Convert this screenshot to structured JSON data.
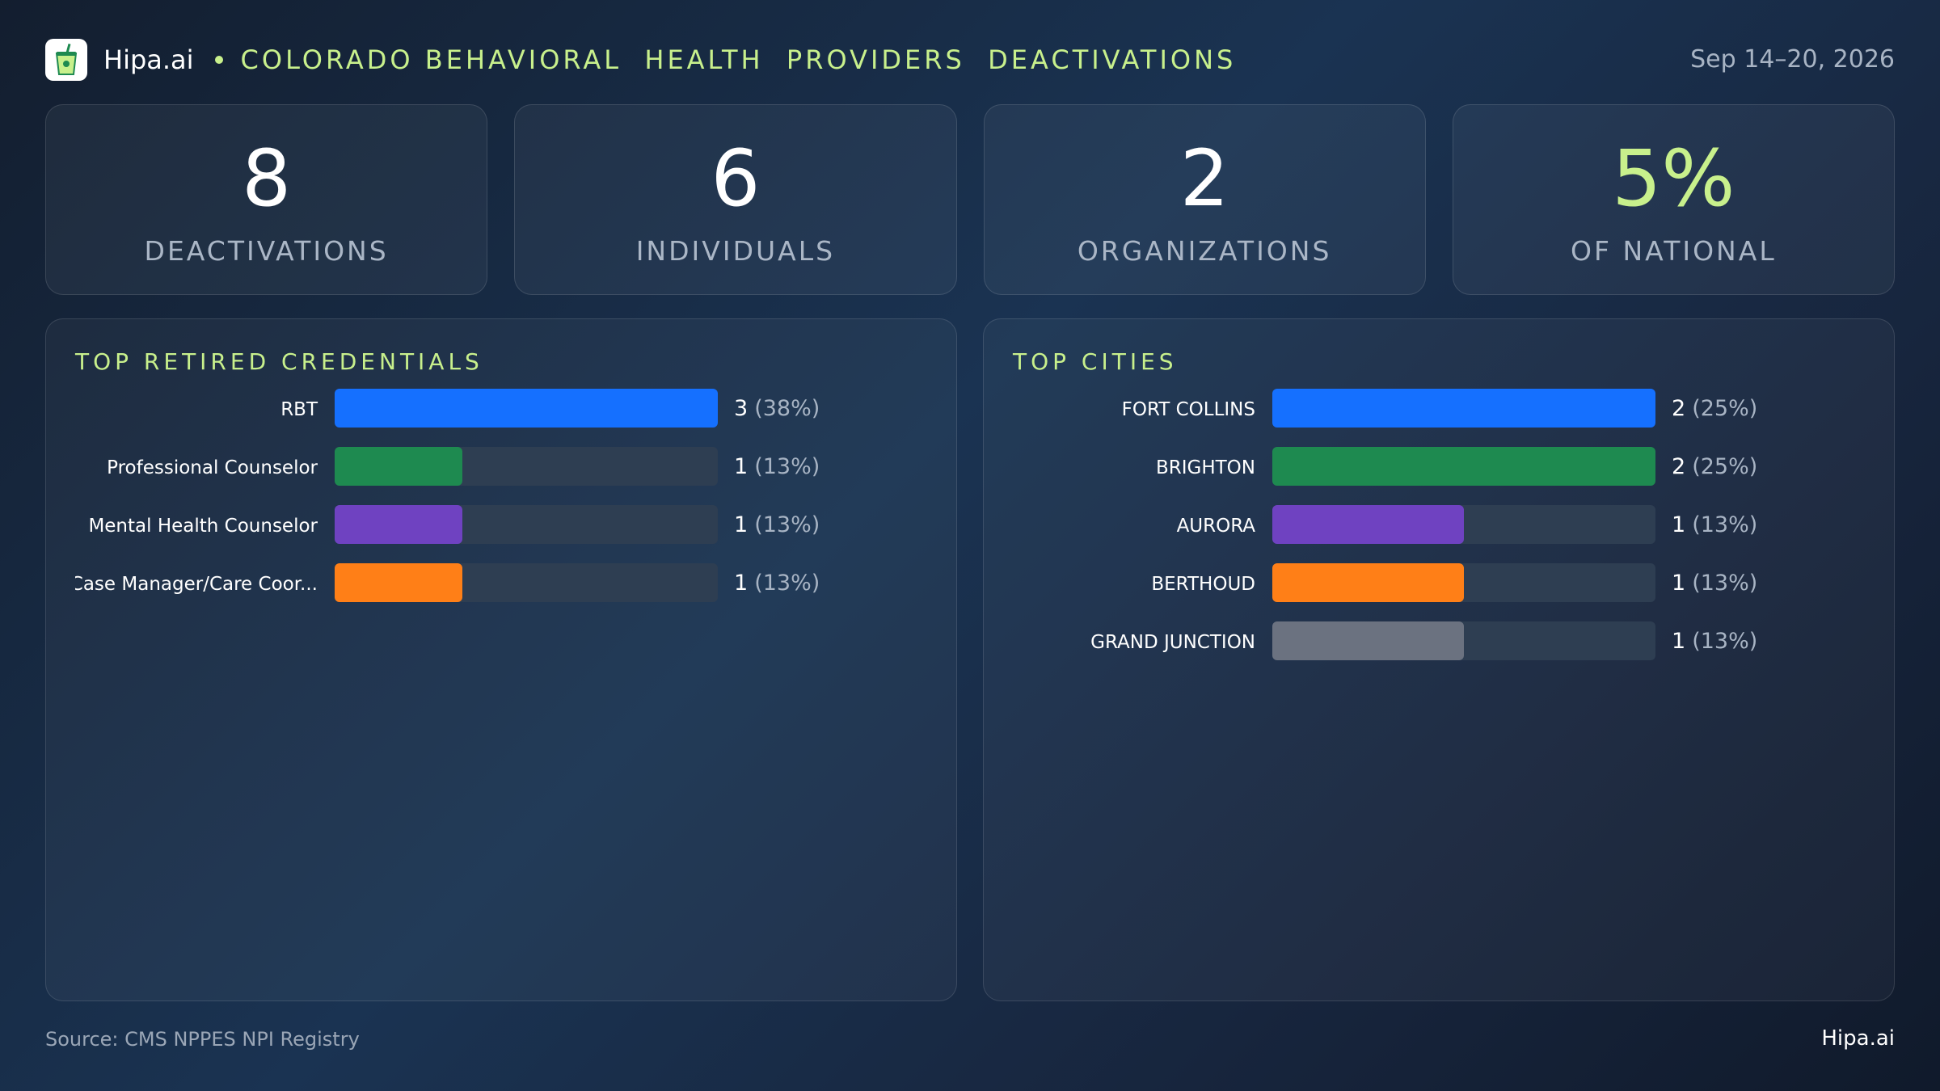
{
  "header": {
    "brand": "Hipa.ai",
    "title": "COLORADO BEHAVIORAL  HEALTH  PROVIDERS  DEACTIVATIONS",
    "date": "Sep 14–20, 2026",
    "logo_icon": "cup-with-straw-icon"
  },
  "kpis": [
    {
      "value": "8",
      "label": "DEACTIVATIONS"
    },
    {
      "value": "6",
      "label": "INDIVIDUALS"
    },
    {
      "value": "2",
      "label": "ORGANIZATIONS"
    },
    {
      "value": "5%",
      "label": "OF NATIONAL"
    }
  ],
  "colors": {
    "accent": "#c8f08c",
    "blue": "#1570ff",
    "green": "#1e8a50",
    "purple": "#6f42c1",
    "orange": "#ff7f17",
    "gray": "#6b7280",
    "track": "#2e3e52"
  },
  "chart_data": [
    {
      "type": "bar",
      "orientation": "horizontal",
      "title": "TOP RETIRED CREDENTIALS",
      "categories": [
        "RBT",
        "Professional  Counselor",
        "Mental Health Counselor",
        "Case Manager/Care Coor..."
      ],
      "values": [
        3,
        1,
        1,
        1
      ],
      "value_labels": [
        "3",
        "1",
        "1",
        "1"
      ],
      "percent_labels": [
        "(38%)",
        "(13%)",
        "(13%)",
        "(13%)"
      ],
      "colors": [
        "#1570ff",
        "#1e8a50",
        "#6f42c1",
        "#ff7f17"
      ],
      "xlim": [
        0,
        3
      ]
    },
    {
      "type": "bar",
      "orientation": "horizontal",
      "title": "TOP CITIES",
      "categories": [
        "FORT COLLINS",
        "BRIGHTON",
        "AURORA",
        "BERTHOUD",
        "GRAND JUNCTION"
      ],
      "values": [
        2,
        2,
        1,
        1,
        1
      ],
      "value_labels": [
        "2",
        "2",
        "1",
        "1",
        "1"
      ],
      "percent_labels": [
        "(25%)",
        "(25%)",
        "(13%)",
        "(13%)",
        "(13%)"
      ],
      "colors": [
        "#1570ff",
        "#1e8a50",
        "#6f42c1",
        "#ff7f17",
        "#6b7280"
      ],
      "xlim": [
        0,
        2
      ]
    }
  ],
  "footer": {
    "source": "Source: CMS NPPES NPI Registry",
    "brand": "Hipa.ai"
  }
}
